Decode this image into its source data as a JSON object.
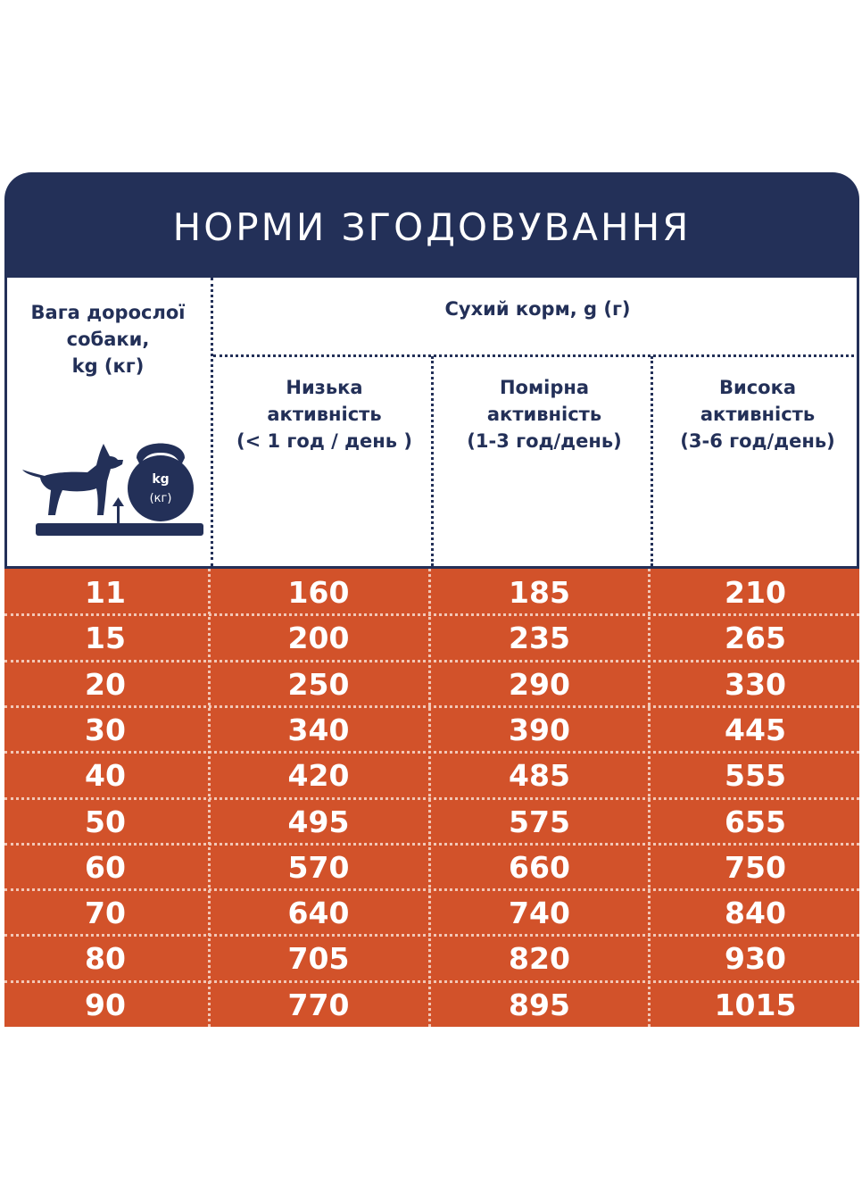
{
  "title": "НОРМИ ЗГОДОВУВАННЯ",
  "header": {
    "weight_label": [
      "Вага дорослої",
      "собаки,",
      "kg (кг)"
    ],
    "dry_food_label": "Сухий корм, g (г)",
    "icon_kg": "kg",
    "icon_kg_ua": "(кг)",
    "columns": [
      {
        "lines": [
          "Низька",
          "активність",
          "(< 1 год / день )"
        ]
      },
      {
        "lines": [
          "Помірна",
          "активність",
          "(1-3 год/день)"
        ]
      },
      {
        "lines": [
          "Висока",
          "активність",
          "(3-6 год/день)"
        ]
      }
    ]
  },
  "colors": {
    "navy": "#233058",
    "orange": "#d2522a",
    "white": "#ffffff"
  },
  "icons": [
    "dog-icon",
    "kettlebell-icon",
    "arrow-up-icon",
    "scale-platform-icon"
  ],
  "rows": [
    [
      "11",
      "160",
      "185",
      "210"
    ],
    [
      "15",
      "200",
      "235",
      "265"
    ],
    [
      "20",
      "250",
      "290",
      "330"
    ],
    [
      "30",
      "340",
      "390",
      "445"
    ],
    [
      "40",
      "420",
      "485",
      "555"
    ],
    [
      "50",
      "495",
      "575",
      "655"
    ],
    [
      "60",
      "570",
      "660",
      "750"
    ],
    [
      "70",
      "640",
      "740",
      "840"
    ],
    [
      "80",
      "705",
      "820",
      "930"
    ],
    [
      "90",
      "770",
      "895",
      "1015"
    ]
  ]
}
